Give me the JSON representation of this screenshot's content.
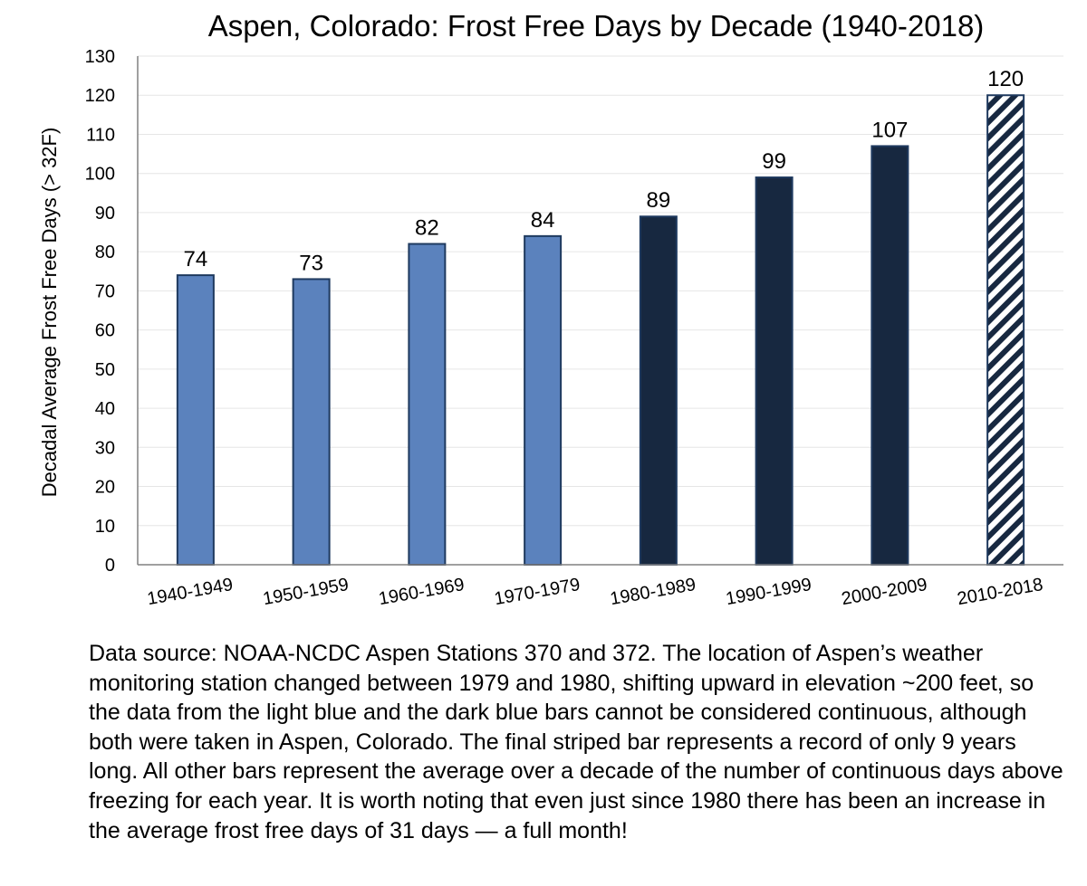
{
  "chart_data": {
    "type": "bar",
    "title": "Aspen, Colorado: Frost Free Days by Decade (1940-2018)",
    "xlabel": "",
    "ylabel": "Decadal Average Frost Free Days (> 32F)",
    "ylim": [
      0,
      130
    ],
    "yticks": [
      0,
      10,
      20,
      30,
      40,
      50,
      60,
      70,
      80,
      90,
      100,
      110,
      120,
      130
    ],
    "grid": true,
    "categories": [
      "1940-1949",
      "1950-1959",
      "1960-1969",
      "1970-1979",
      "1980-1989",
      "1990-1999",
      "2000-2009",
      "2010-2018"
    ],
    "values": [
      74,
      73,
      82,
      84,
      89,
      99,
      107,
      120
    ],
    "data_labels": [
      "74",
      "73",
      "82",
      "84",
      "89",
      "99",
      "107",
      "120"
    ],
    "bar_styles": [
      "light",
      "light",
      "light",
      "light",
      "dark",
      "dark",
      "dark",
      "striped"
    ],
    "colors": {
      "light": "#5b82bd",
      "dark": "#172840",
      "stroke": "#1f3a5f",
      "grid": "#e6e6e6",
      "axis": "#808080"
    }
  },
  "note": "Data source: NOAA-NCDC Aspen Stations 370 and 372. The location of Aspen’s weather monitoring station changed between 1979 and 1980, shifting upward in elevation ~200 feet, so the data from the light blue and the dark blue bars cannot be considered continuous, although both were taken in Aspen, Colorado. The final striped bar represents a record of only 9 years long. All other bars represent the average over a decade of the number of continuous days above freezing for each year. It is worth noting that even just since 1980 there has been an increase in the average frost free days of 31 days — a full month!"
}
